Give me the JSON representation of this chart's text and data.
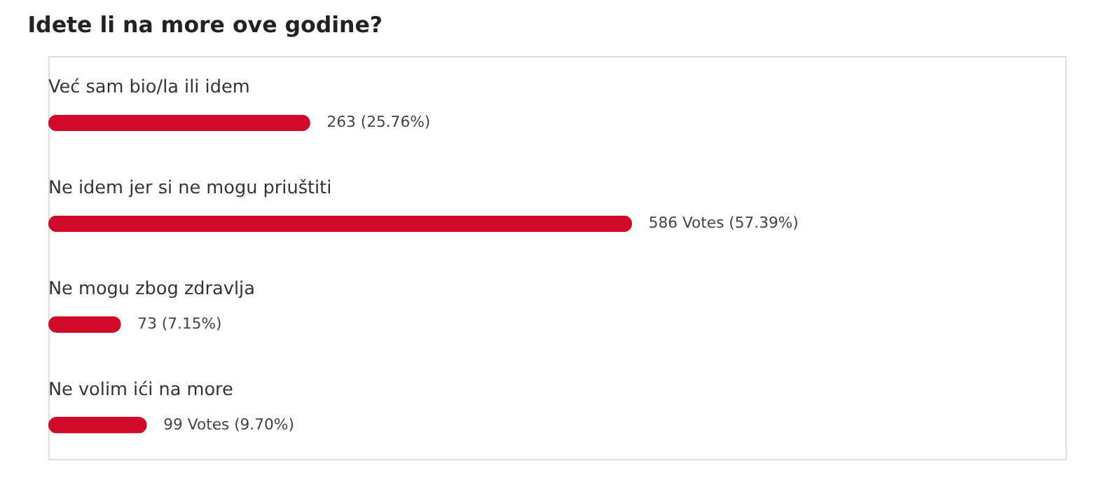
{
  "chart_data": {
    "type": "bar",
    "orientation": "horizontal",
    "title": "Idete li na more ove godine?",
    "categories": [
      "Već sam bio/la ili idem",
      "Ne idem jer si ne mogu priuštiti",
      "Ne mogu zbog zdravlja",
      "Ne volim ići na more"
    ],
    "values": [
      263,
      586,
      73,
      99
    ],
    "value_labels": [
      "263 (25.76%)",
      "586 Votes (57.39%)",
      "73 (7.15%)",
      "99 Votes (9.70%)"
    ],
    "color": "#d20a2a",
    "xlim": [
      0,
      1021
    ],
    "tick_labels": false
  }
}
